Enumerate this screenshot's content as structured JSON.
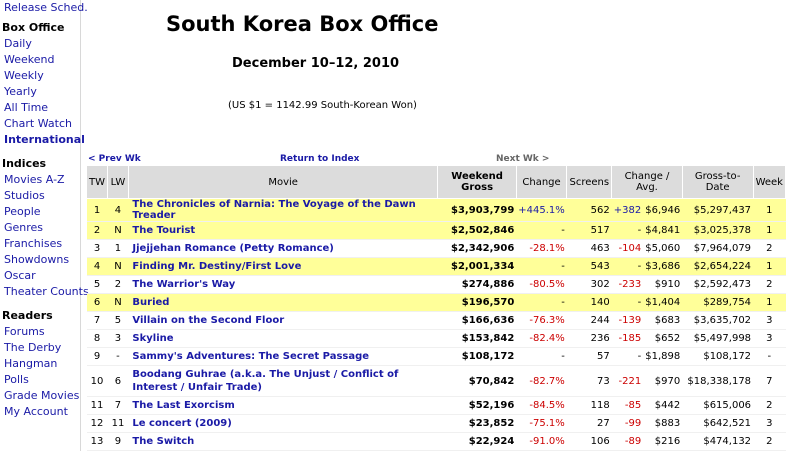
{
  "sidebar": {
    "top_link": "Release Sched.",
    "sections": [
      {
        "heading": "Box Office",
        "items": [
          {
            "label": "Daily"
          },
          {
            "label": "Weekend"
          },
          {
            "label": "Weekly"
          },
          {
            "label": "Yearly"
          },
          {
            "label": "All Time"
          },
          {
            "label": "Chart Watch"
          },
          {
            "label": "International",
            "bold": true
          }
        ]
      },
      {
        "heading": "Indices",
        "items": [
          {
            "label": "Movies A-Z"
          },
          {
            "label": "Studios"
          },
          {
            "label": "People"
          },
          {
            "label": "Genres"
          },
          {
            "label": "Franchises"
          },
          {
            "label": "Showdowns"
          },
          {
            "label": "Oscar"
          },
          {
            "label": "Theater Counts"
          }
        ]
      },
      {
        "heading": "Readers",
        "items": [
          {
            "label": "Forums"
          },
          {
            "label": "The Derby"
          },
          {
            "label": "Hangman"
          },
          {
            "label": "Polls"
          },
          {
            "label": "Grade Movies"
          },
          {
            "label": "My Account"
          }
        ]
      }
    ]
  },
  "page": {
    "title": "South Korea Box Office",
    "dates": "December 10–12, 2010",
    "rate": "(US $1 = 1142.99 South-Korean Won)"
  },
  "nav": {
    "prev": "< Prev Wk",
    "index": "Return to Index",
    "next": "Next Wk >"
  },
  "table": {
    "headers": [
      "TW",
      "LW",
      "Movie",
      "Weekend Gross",
      "Change",
      "Screens",
      "Change / Avg.",
      "",
      "Gross-to-Date",
      "Week"
    ],
    "rows": [
      {
        "tw": "1",
        "lw": "4",
        "movie": "The Chronicles of Narnia: The Voyage of the Dawn Treader",
        "gross": "$3,903,799",
        "change": "+445.1%",
        "screens": "562",
        "scr_change": "+382",
        "avg": "$6,946",
        "todate": "$5,297,437",
        "week": "1",
        "hl": true
      },
      {
        "tw": "2",
        "lw": "N",
        "movie": "The Tourist",
        "gross": "$2,502,846",
        "change": "-",
        "screens": "517",
        "scr_change": "-",
        "avg": "$4,841",
        "todate": "$3,025,378",
        "week": "1",
        "hl": true
      },
      {
        "tw": "3",
        "lw": "1",
        "movie": "Jjejjehan Romance (Petty Romance)",
        "gross": "$2,342,906",
        "change": "-28.1%",
        "screens": "463",
        "scr_change": "-104",
        "avg": "$5,060",
        "todate": "$7,964,079",
        "week": "2",
        "hl": false
      },
      {
        "tw": "4",
        "lw": "N",
        "movie": "Finding Mr. Destiny/First Love",
        "gross": "$2,001,334",
        "change": "-",
        "screens": "543",
        "scr_change": "-",
        "avg": "$3,686",
        "todate": "$2,654,224",
        "week": "1",
        "hl": true
      },
      {
        "tw": "5",
        "lw": "2",
        "movie": "The Warrior's Way",
        "gross": "$274,886",
        "change": "-80.5%",
        "screens": "302",
        "scr_change": "-233",
        "avg": "$910",
        "todate": "$2,592,473",
        "week": "2",
        "hl": false
      },
      {
        "tw": "6",
        "lw": "N",
        "movie": "Buried",
        "gross": "$196,570",
        "change": "-",
        "screens": "140",
        "scr_change": "-",
        "avg": "$1,404",
        "todate": "$289,754",
        "week": "1",
        "hl": true
      },
      {
        "tw": "7",
        "lw": "5",
        "movie": "Villain on the Second Floor",
        "gross": "$166,636",
        "change": "-76.3%",
        "screens": "244",
        "scr_change": "-139",
        "avg": "$683",
        "todate": "$3,635,702",
        "week": "3",
        "hl": false
      },
      {
        "tw": "8",
        "lw": "3",
        "movie": "Skyline",
        "gross": "$153,842",
        "change": "-82.4%",
        "screens": "236",
        "scr_change": "-185",
        "avg": "$652",
        "todate": "$5,497,998",
        "week": "3",
        "hl": false
      },
      {
        "tw": "9",
        "lw": "-",
        "movie": "Sammy's Adventures: The Secret Passage",
        "gross": "$108,172",
        "change": "-",
        "screens": "57",
        "scr_change": "-",
        "avg": "$1,898",
        "todate": "$108,172",
        "week": "-",
        "hl": false
      },
      {
        "tw": "10",
        "lw": "6",
        "movie": "Boodang Guhrae (a.k.a. The Unjust / Conflict of Interest / Unfair Trade)",
        "gross": "$70,842",
        "change": "-82.7%",
        "screens": "73",
        "scr_change": "-221",
        "avg": "$970",
        "todate": "$18,338,178",
        "week": "7",
        "hl": false,
        "tall": true
      },
      {
        "tw": "11",
        "lw": "7",
        "movie": "The Last Exorcism",
        "gross": "$52,196",
        "change": "-84.5%",
        "screens": "118",
        "scr_change": "-85",
        "avg": "$442",
        "todate": "$615,006",
        "week": "2",
        "hl": false
      },
      {
        "tw": "12",
        "lw": "11",
        "movie": "Le concert (2009)",
        "gross": "$23,852",
        "change": "-75.1%",
        "screens": "27",
        "scr_change": "-99",
        "avg": "$883",
        "todate": "$642,521",
        "week": "3",
        "hl": false
      },
      {
        "tw": "13",
        "lw": "9",
        "movie": "The Switch",
        "gross": "$22,924",
        "change": "-91.0%",
        "screens": "106",
        "scr_change": "-89",
        "avg": "$216",
        "todate": "$474,132",
        "week": "2",
        "hl": false
      }
    ]
  }
}
